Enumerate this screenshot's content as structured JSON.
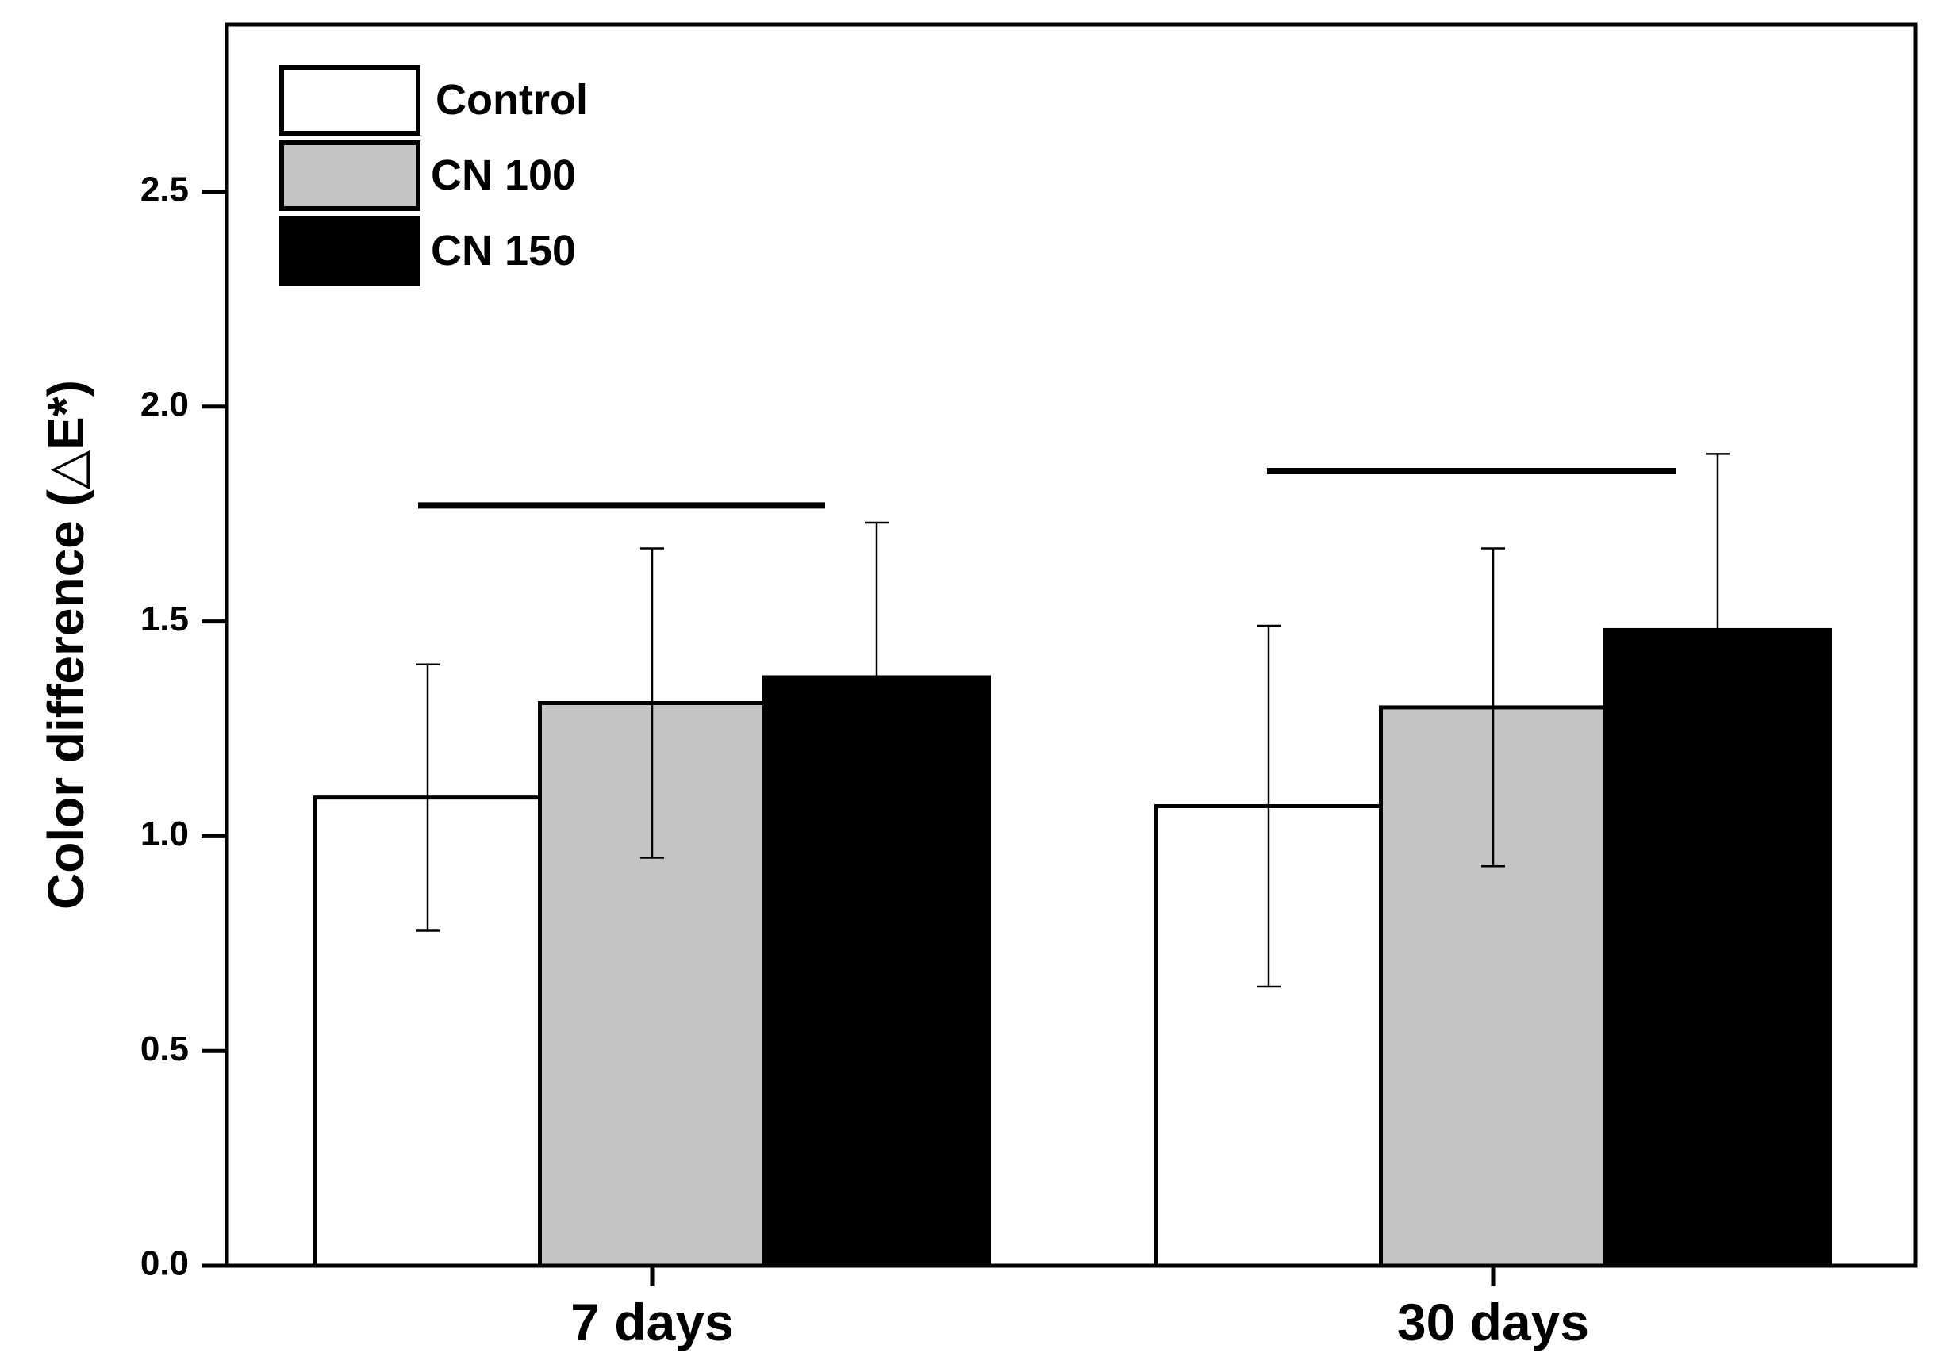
{
  "chart_data": {
    "type": "bar",
    "title": "",
    "xlabel": "",
    "ylabel": "Color difference (△E*)",
    "ylim": [
      0,
      2.9
    ],
    "yticks": [
      0.0,
      0.5,
      1.0,
      1.5,
      2.0,
      2.5
    ],
    "ytick_labels": [
      "0.0",
      "0.5",
      "1.0",
      "1.5",
      "2.0",
      "2.5"
    ],
    "grid": false,
    "legend_position": "top-left",
    "categories": [
      "7 days",
      "30 days"
    ],
    "series": [
      {
        "name": "Control",
        "values": [
          1.09,
          1.07
        ],
        "errors": [
          0.31,
          0.42
        ],
        "color": "#ffffff"
      },
      {
        "name": "CN 100",
        "values": [
          1.31,
          1.3
        ],
        "errors": [
          0.36,
          0.37
        ],
        "color": "#c4c4c4"
      },
      {
        "name": "CN 150",
        "values": [
          1.37,
          1.48
        ],
        "errors": [
          0.36,
          0.41
        ],
        "color": "#000000"
      }
    ],
    "annotations": [
      {
        "type": "significance-bar",
        "category": "7 days",
        "y": 1.77
      },
      {
        "type": "significance-bar",
        "category": "30 days",
        "y": 1.85
      }
    ]
  }
}
